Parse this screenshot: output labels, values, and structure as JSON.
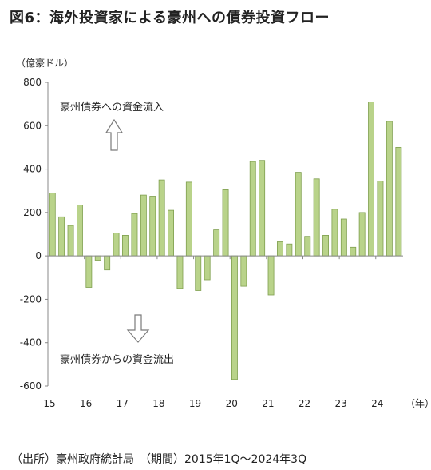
{
  "chart_data": {
    "type": "bar",
    "title": "図6：海外投資家による豪州への債券投資フロー",
    "ylabel": "（億豪ドル）",
    "xlabel": "（年）",
    "ylim": [
      -600,
      800
    ],
    "yticks": [
      800,
      600,
      400,
      200,
      0,
      -200,
      -400,
      -600
    ],
    "xticks": [
      "15",
      "16",
      "17",
      "18",
      "19",
      "20",
      "21",
      "22",
      "23",
      "24"
    ],
    "grid": false,
    "bar_color": "#b9d38a",
    "bar_border": "#7f9f4e",
    "annotation_inflow": "豪州債券への資金流入",
    "annotation_outflow": "豪州債券からの資金流出",
    "source": "（出所）豪州政府統計局　（期間）2015年1Q～2024年3Q",
    "categories": [
      "2015Q1",
      "2015Q2",
      "2015Q3",
      "2015Q4",
      "2016Q1",
      "2016Q2",
      "2016Q3",
      "2016Q4",
      "2017Q1",
      "2017Q2",
      "2017Q3",
      "2017Q4",
      "2018Q1",
      "2018Q2",
      "2018Q3",
      "2018Q4",
      "2019Q1",
      "2019Q2",
      "2019Q3",
      "2019Q4",
      "2020Q1",
      "2020Q2",
      "2020Q3",
      "2020Q4",
      "2021Q1",
      "2021Q2",
      "2021Q3",
      "2021Q4",
      "2022Q1",
      "2022Q2",
      "2022Q3",
      "2022Q4",
      "2023Q1",
      "2023Q2",
      "2023Q3",
      "2023Q4",
      "2024Q1",
      "2024Q2",
      "2024Q3"
    ],
    "values": [
      290,
      180,
      140,
      235,
      -145,
      -20,
      -65,
      105,
      95,
      195,
      280,
      275,
      350,
      210,
      -150,
      340,
      -160,
      -110,
      120,
      305,
      -570,
      -140,
      435,
      440,
      -180,
      65,
      55,
      385,
      90,
      355,
      95,
      215,
      170,
      40,
      200,
      710,
      345,
      620,
      500
    ]
  }
}
